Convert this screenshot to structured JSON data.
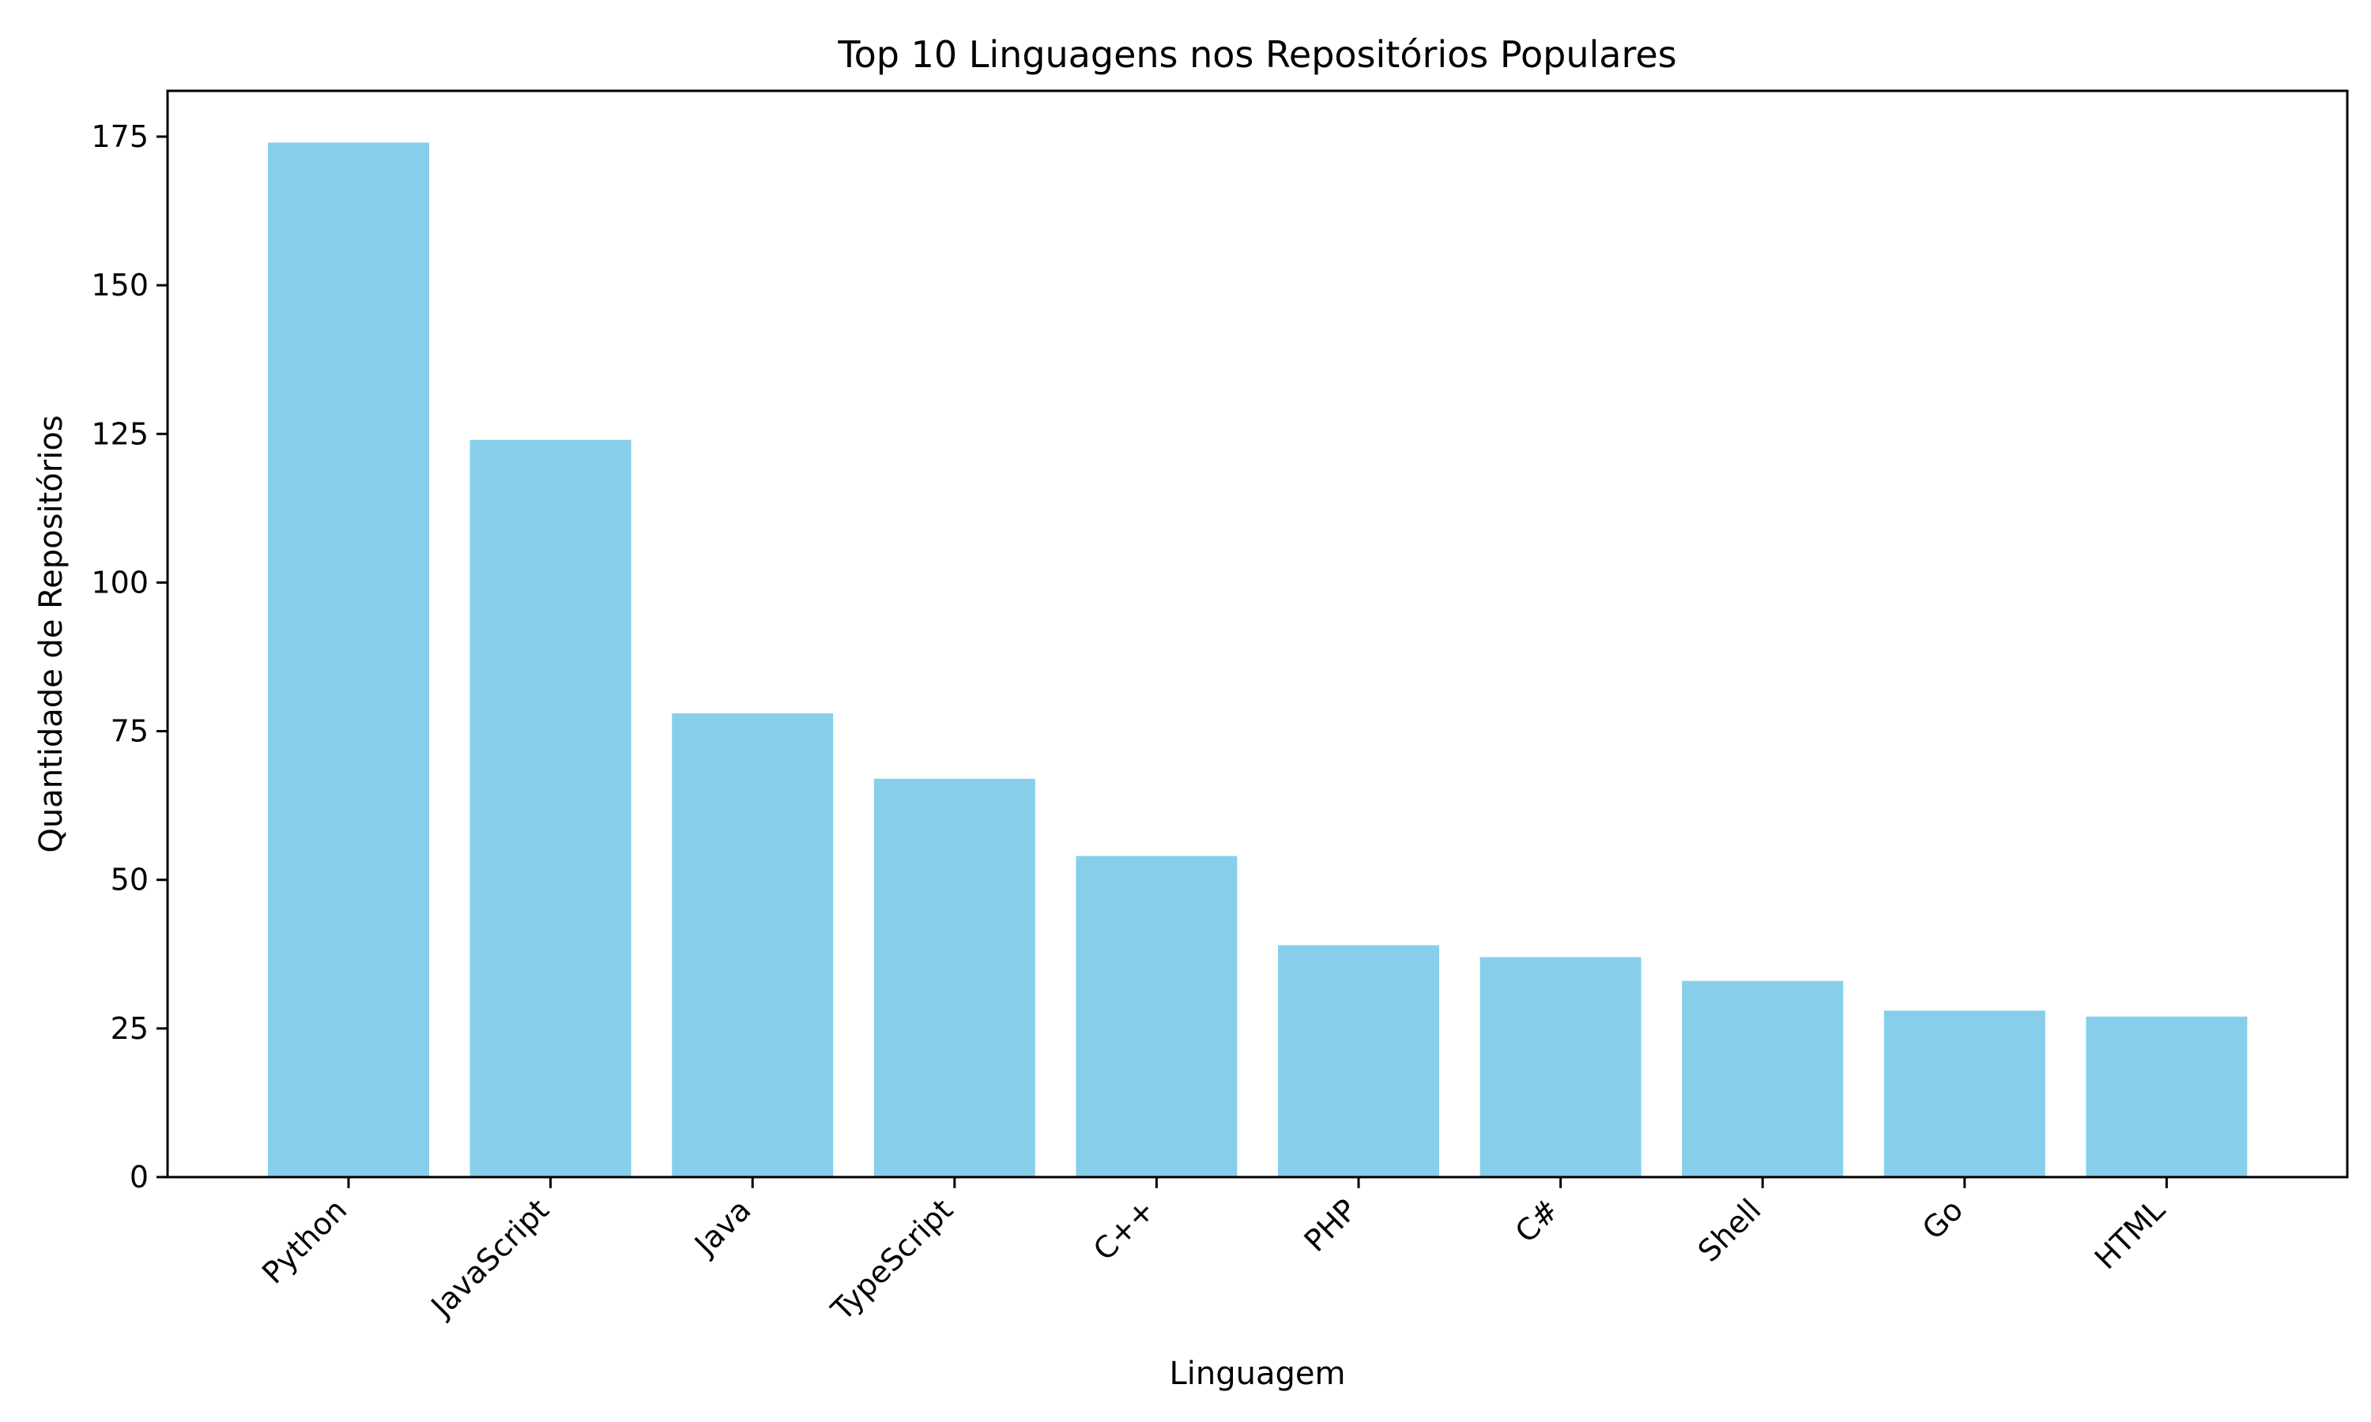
{
  "chart_data": {
    "type": "bar",
    "title": "Top 10 Linguagens nos Repositórios Populares",
    "xlabel": "Linguagem",
    "ylabel": "Quantidade de Repositórios",
    "categories": [
      "Python",
      "JavaScript",
      "Java",
      "TypeScript",
      "C++",
      "PHP",
      "C#",
      "Shell",
      "Go",
      "HTML"
    ],
    "values": [
      174,
      124,
      78,
      67,
      54,
      39,
      37,
      33,
      28,
      27
    ],
    "ylim": [
      0,
      182.7
    ],
    "yticks": [
      0,
      25,
      50,
      75,
      100,
      125,
      150,
      175
    ],
    "bar_color": "#87ceeb",
    "grid": false,
    "legend": "none"
  }
}
